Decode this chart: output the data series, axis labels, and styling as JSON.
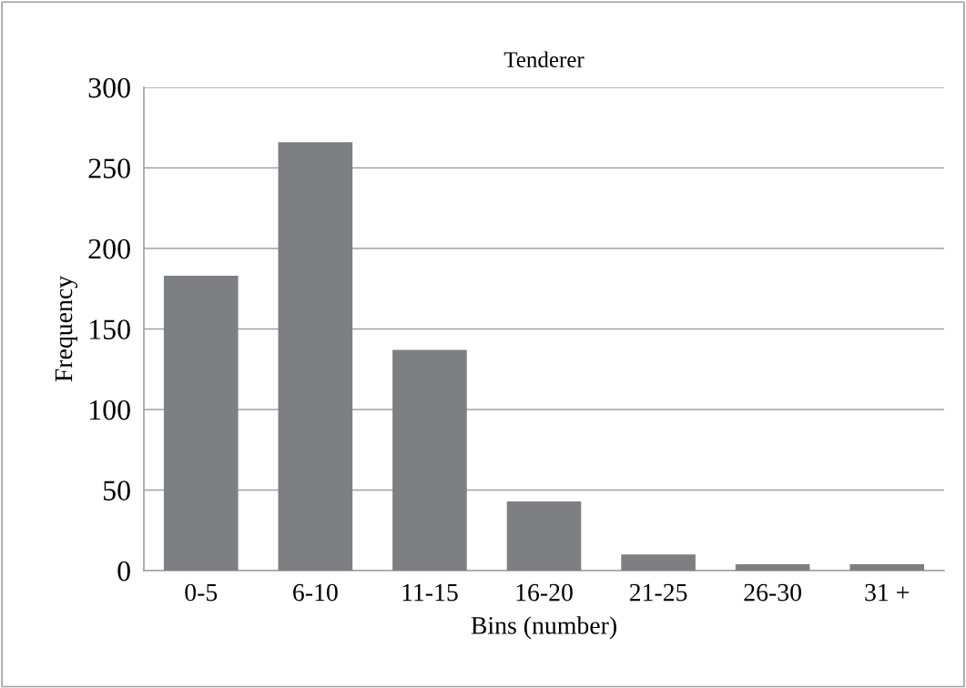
{
  "chart_data": {
    "type": "bar",
    "title": "Tenderer",
    "xlabel": "Bins (number)",
    "ylabel": "Frequency",
    "categories": [
      "0-5",
      "6-10",
      "11-15",
      "16-20",
      "21-25",
      "26-30",
      "31 +"
    ],
    "values": [
      183,
      266,
      137,
      43,
      10,
      4,
      4
    ],
    "color": "#7e7f83",
    "ylim": [
      0,
      300
    ],
    "yticks": [
      0,
      50,
      100,
      150,
      200,
      250,
      300
    ],
    "grid": "y",
    "legend": false
  }
}
